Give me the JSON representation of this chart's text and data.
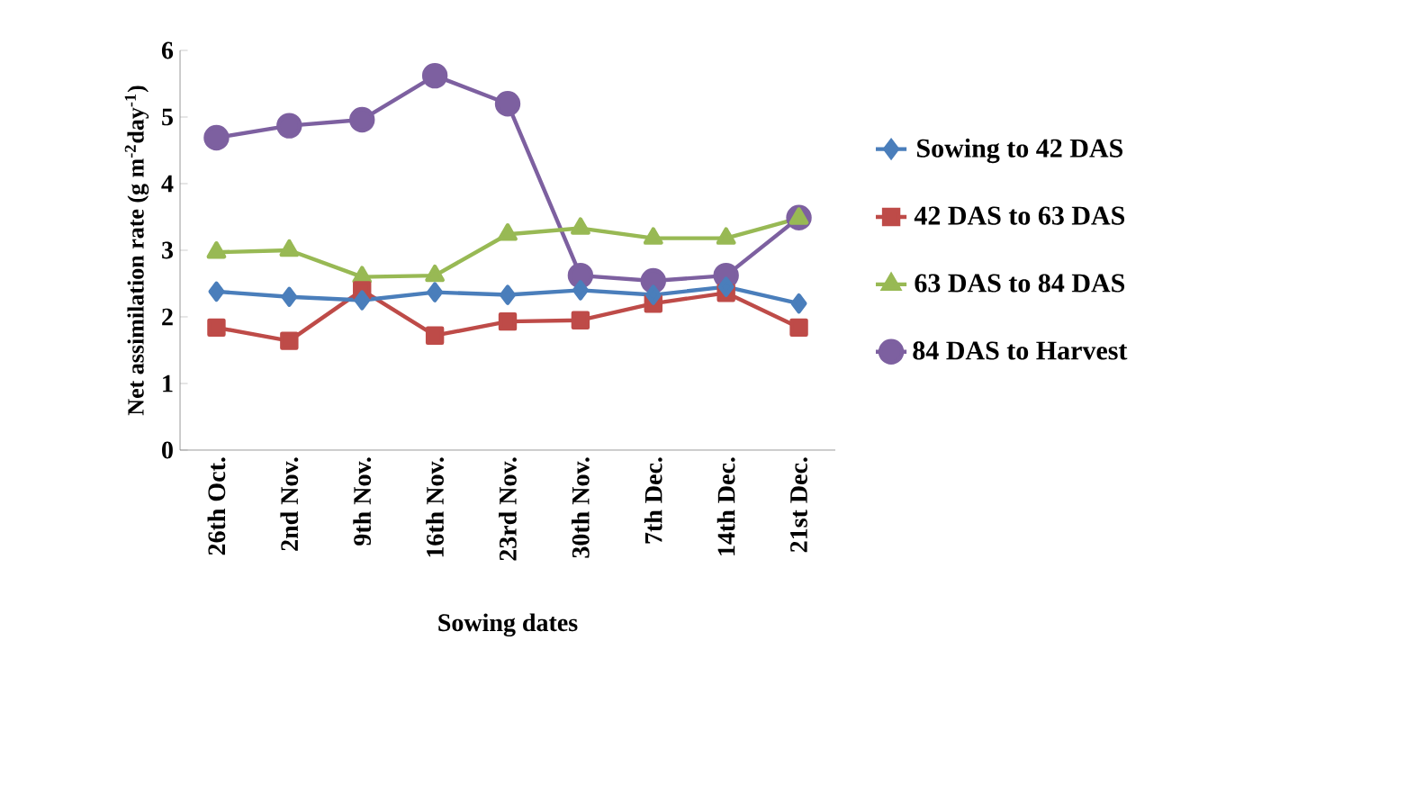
{
  "chart_data": {
    "type": "line",
    "xlabel": "Sowing dates",
    "ylabel": "Net assimilation rate (g m$^{-2}$day$^{-1}$)",
    "categories": [
      "26th Oct.",
      "2nd Nov.",
      "9th Nov.",
      "16th Nov.",
      "23rd Nov.",
      "30th Nov.",
      "7th Dec.",
      "14th Dec.",
      "21st Dec."
    ],
    "ylim": [
      0,
      6
    ],
    "yticks": [
      0,
      1,
      2,
      3,
      4,
      5,
      6
    ],
    "grid": false,
    "legend": "right",
    "series": [
      {
        "name": "Sowing to 42 DAS",
        "color": "#4a7ebb",
        "marker": "diamond",
        "values": [
          2.38,
          2.3,
          2.25,
          2.37,
          2.33,
          2.4,
          2.33,
          2.45,
          2.2
        ]
      },
      {
        "name": "42 DAS to 63 DAS",
        "color": "#be4b48",
        "marker": "square",
        "values": [
          1.84,
          1.64,
          2.4,
          1.72,
          1.93,
          1.95,
          2.2,
          2.36,
          1.84
        ]
      },
      {
        "name": "63 DAS to 84 DAS",
        "color": "#98b954",
        "marker": "triangle",
        "values": [
          2.97,
          3.0,
          2.6,
          2.62,
          3.24,
          3.33,
          3.18,
          3.18,
          3.48
        ]
      },
      {
        "name": "84 DAS to Harvest",
        "color": "#7d60a0",
        "marker": "circle",
        "values": [
          4.69,
          4.87,
          4.96,
          5.62,
          5.2,
          2.62,
          2.54,
          2.62,
          3.49
        ]
      }
    ]
  }
}
